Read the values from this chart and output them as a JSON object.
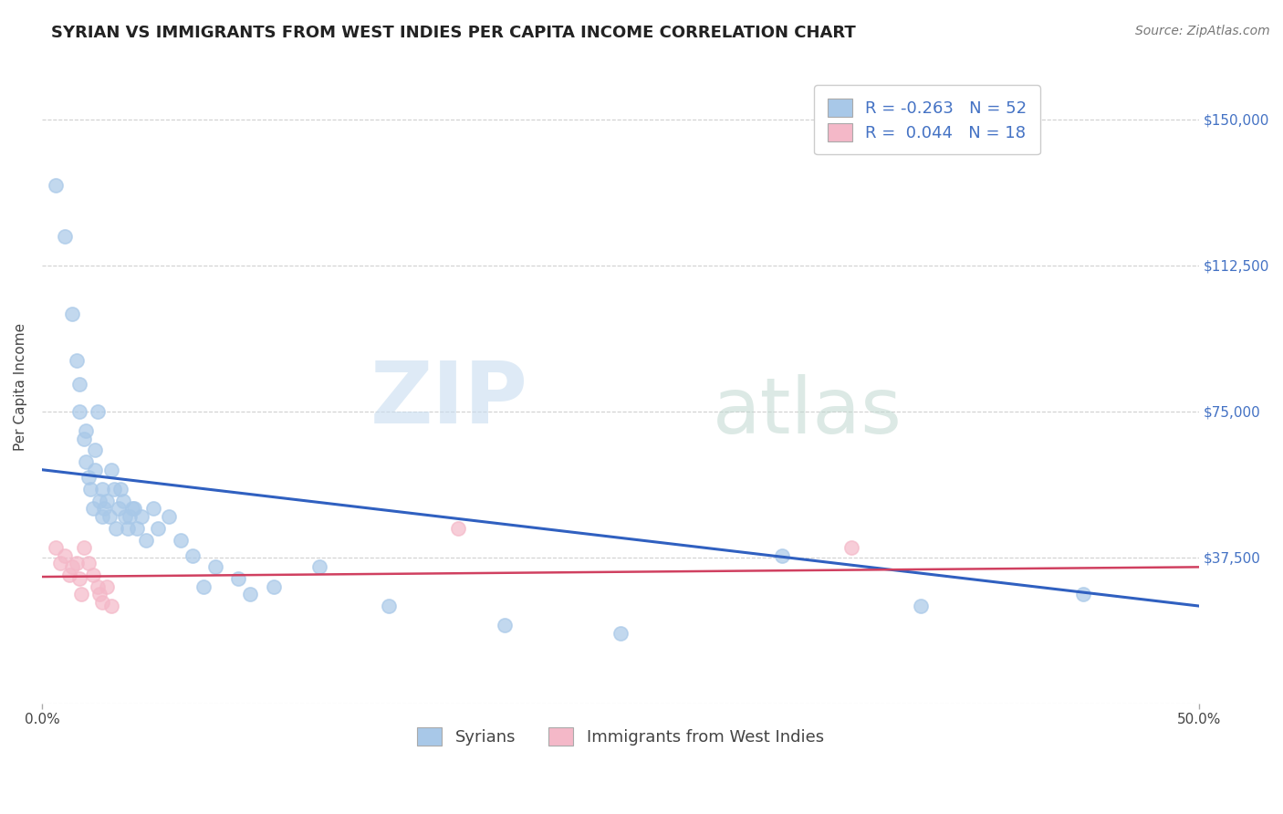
{
  "title": "SYRIAN VS IMMIGRANTS FROM WEST INDIES PER CAPITA INCOME CORRELATION CHART",
  "source": "Source: ZipAtlas.com",
  "ylabel": "Per Capita Income",
  "xlim": [
    0.0,
    0.5
  ],
  "ylim": [
    0,
    162500
  ],
  "yticks": [
    0,
    37500,
    75000,
    112500,
    150000
  ],
  "ytick_labels": [
    "",
    "$37,500",
    "$75,000",
    "$112,500",
    "$150,000"
  ],
  "xtick_positions": [
    0.0,
    0.5
  ],
  "xtick_labels": [
    "0.0%",
    "50.0%"
  ],
  "legend_label1": "Syrians",
  "legend_label2": "Immigrants from West Indies",
  "syrian_color": "#a8c8e8",
  "westindies_color": "#f4b8c8",
  "trendline_syrian_color": "#3060c0",
  "trendline_westindies_color": "#d04060",
  "background_color": "#ffffff",
  "syrian_x": [
    0.006,
    0.01,
    0.013,
    0.015,
    0.016,
    0.016,
    0.018,
    0.019,
    0.019,
    0.02,
    0.021,
    0.022,
    0.023,
    0.023,
    0.024,
    0.025,
    0.026,
    0.026,
    0.027,
    0.028,
    0.029,
    0.03,
    0.031,
    0.032,
    0.033,
    0.034,
    0.035,
    0.036,
    0.037,
    0.038,
    0.039,
    0.04,
    0.041,
    0.043,
    0.045,
    0.048,
    0.05,
    0.055,
    0.06,
    0.065,
    0.07,
    0.075,
    0.085,
    0.09,
    0.1,
    0.12,
    0.15,
    0.2,
    0.25,
    0.32,
    0.38,
    0.45
  ],
  "syrian_y": [
    133000,
    120000,
    100000,
    88000,
    82000,
    75000,
    68000,
    62000,
    70000,
    58000,
    55000,
    50000,
    65000,
    60000,
    75000,
    52000,
    55000,
    48000,
    50000,
    52000,
    48000,
    60000,
    55000,
    45000,
    50000,
    55000,
    52000,
    48000,
    45000,
    48000,
    50000,
    50000,
    45000,
    48000,
    42000,
    50000,
    45000,
    48000,
    42000,
    38000,
    30000,
    35000,
    32000,
    28000,
    30000,
    35000,
    25000,
    20000,
    18000,
    38000,
    25000,
    28000
  ],
  "westindies_x": [
    0.006,
    0.008,
    0.01,
    0.012,
    0.013,
    0.015,
    0.016,
    0.017,
    0.018,
    0.02,
    0.022,
    0.024,
    0.025,
    0.026,
    0.028,
    0.03,
    0.18,
    0.35
  ],
  "westindies_y": [
    40000,
    36000,
    38000,
    33000,
    35000,
    36000,
    32000,
    28000,
    40000,
    36000,
    33000,
    30000,
    28000,
    26000,
    30000,
    25000,
    45000,
    40000
  ],
  "syrian_trend_x": [
    0.0,
    0.5
  ],
  "syrian_trend_y": [
    60000,
    25000
  ],
  "westindies_trend_x": [
    0.0,
    0.5
  ],
  "westindies_trend_y": [
    32500,
    35000
  ],
  "title_fontsize": 13,
  "source_fontsize": 10,
  "axis_label_fontsize": 10,
  "tick_fontsize": 11,
  "legend_fontsize": 13
}
